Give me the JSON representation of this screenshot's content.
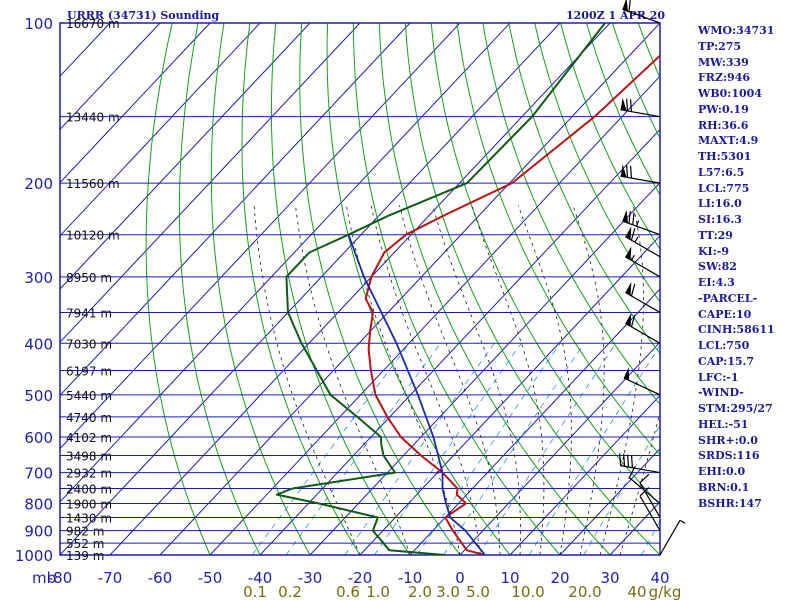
{
  "header": {
    "station_title": "URRR (34731) Sounding",
    "valid_time": "1200Z  1 APR 20"
  },
  "indices": [
    "WMO:34731",
    "TP:275",
    "MW:339",
    "FRZ:946",
    "WB0:1004",
    "PW:0.19",
    "RH:36.6",
    "MAXT:4.9",
    "TH:5301",
    "L57:6.5",
    "LCL:775",
    "LI:16.0",
    "SI:16.3",
    "TT:29",
    "KI:-9",
    "SW:82",
    "EI:4.3",
    "-PARCEL-",
    "CAPE:10",
    "CINH:58611",
    "LCL:750",
    "CAP:15.7",
    "LFC:-1",
    "-WIND-",
    "STM:295/27",
    "HEL:-51",
    "SHR+:0.0",
    "SRDS:116",
    "EHI:0.0",
    "BRN:0.1",
    "BSHR:147"
  ],
  "colors": {
    "frame": "#1c1cb0",
    "isotherm": "#1c1cb0",
    "dry_adiabat": "#16a016",
    "moist_adiabat": "#1a1a1a",
    "mixing_ratio": "#2f8fd8",
    "temperature": "#b81414",
    "dewpoint": "#0f5a14",
    "parcel": "#1a2aa8",
    "axis_text": "#2020b0",
    "mixing_text": "#7a6a10"
  },
  "chart_data": {
    "type": "line",
    "title": "URRR (34731) Sounding",
    "pressure_axis_unit": "mb",
    "pressure_levels": [
      100,
      200,
      300,
      400,
      500,
      600,
      700,
      800,
      900,
      1000
    ],
    "temperature_ticks": [
      -80,
      -70,
      -60,
      -50,
      -40,
      -30,
      -20,
      -10,
      0,
      10,
      20,
      30,
      40
    ],
    "temperature_tick_labels": [
      "-80",
      "-70",
      "-60",
      "-50",
      "-40",
      "-30",
      "-20",
      "-10",
      "0",
      "10",
      "20",
      "30",
      "40"
    ],
    "height_labels": [
      {
        "p": 100,
        "label": "16670 m"
      },
      {
        "p": 150,
        "label": "13440 m"
      },
      {
        "p": 200,
        "label": "11560 m"
      },
      {
        "p": 250,
        "label": "10120 m"
      },
      {
        "p": 300,
        "label": "8950 m"
      },
      {
        "p": 350,
        "label": "7941 m"
      },
      {
        "p": 400,
        "label": "7030 m"
      },
      {
        "p": 450,
        "label": "6197 m"
      },
      {
        "p": 500,
        "label": "5440 m"
      },
      {
        "p": 550,
        "label": "4740 m"
      },
      {
        "p": 600,
        "label": "4102 m"
      },
      {
        "p": 650,
        "label": "3498 m"
      },
      {
        "p": 700,
        "label": "2932 m"
      },
      {
        "p": 750,
        "label": "2400 m"
      },
      {
        "p": 800,
        "label": "1900 m"
      },
      {
        "p": 850,
        "label": "1430 m"
      },
      {
        "p": 900,
        "label": "982 m"
      },
      {
        "p": 950,
        "label": "552 m"
      },
      {
        "p": 1000,
        "label": "139 m"
      }
    ],
    "mixing_ratio_labels": [
      "0.1",
      "0.2",
      "0.6",
      "1.0",
      "2.0",
      "3.0",
      "5.0",
      "10.0",
      "20.0",
      "40",
      "g/kg"
    ],
    "mixing_ratio_values": [
      0.1,
      0.2,
      0.6,
      1.0,
      2.0,
      3.0,
      5.0,
      10.0,
      20.0,
      40
    ],
    "skew_deg_per_decade": 100,
    "series": [
      {
        "name": "Temperature",
        "p": [
          1000,
          980,
          900,
          850,
          800,
          770,
          750,
          700,
          650,
          600,
          550,
          500,
          450,
          410,
          380,
          350,
          330,
          300,
          270,
          250,
          230,
          200,
          150,
          100
        ],
        "t": [
          5.0,
          0.5,
          -6.0,
          -10.0,
          -8.5,
          -12.0,
          -13.0,
          -19.0,
          -26.5,
          -34.0,
          -40.5,
          -47.0,
          -52.5,
          -57.0,
          -60.0,
          -63.0,
          -67.0,
          -70.0,
          -72.0,
          -71.0,
          -67.0,
          -59.5,
          -55.5,
          -53.0
        ]
      },
      {
        "name": "Dewpoint",
        "p": [
          1000,
          980,
          900,
          850,
          800,
          770,
          750,
          700,
          650,
          620,
          600,
          550,
          500,
          400,
          350,
          300,
          270,
          250,
          230,
          200,
          150,
          100
        ],
        "t": [
          -3.0,
          -15.0,
          -22.0,
          -23.5,
          -38.0,
          -48.0,
          -46.0,
          -28.5,
          -34.0,
          -36.5,
          -38.0,
          -46.5,
          -56.0,
          -71.5,
          -80.0,
          -87.0,
          -87.0,
          -82.5,
          -78.0,
          -68.5,
          -68.0,
          -71.0
        ]
      },
      {
        "name": "Parcel",
        "p": [
          1000,
          900,
          850,
          800,
          750,
          700,
          600,
          500,
          400,
          300,
          250
        ],
        "t": [
          5.0,
          -3.5,
          -9.0,
          -12.5,
          -16.0,
          -19.0,
          -27.5,
          -38.5,
          -52.5,
          -71.5,
          -82.5
        ]
      }
    ],
    "wind_barbs": [
      {
        "p": 100,
        "dir_deg": 290,
        "speed_kt": 60
      },
      {
        "p": 150,
        "dir_deg": 280,
        "speed_kt": 70
      },
      {
        "p": 200,
        "dir_deg": 280,
        "speed_kt": 70
      },
      {
        "p": 250,
        "dir_deg": 290,
        "speed_kt": 75
      },
      {
        "p": 275,
        "dir_deg": 300,
        "speed_kt": 65
      },
      {
        "p": 300,
        "dir_deg": 300,
        "speed_kt": 55
      },
      {
        "p": 350,
        "dir_deg": 300,
        "speed_kt": 60
      },
      {
        "p": 400,
        "dir_deg": 300,
        "speed_kt": 60
      },
      {
        "p": 500,
        "dir_deg": 295,
        "speed_kt": 50
      },
      {
        "p": 700,
        "dir_deg": 280,
        "speed_kt": 40
      },
      {
        "p": 800,
        "dir_deg": 310,
        "speed_kt": 10
      },
      {
        "p": 850,
        "dir_deg": 330,
        "speed_kt": 10
      },
      {
        "p": 900,
        "dir_deg": 330,
        "speed_kt": 10
      },
      {
        "p": 1000,
        "dir_deg": 30,
        "speed_kt": 5
      }
    ]
  }
}
